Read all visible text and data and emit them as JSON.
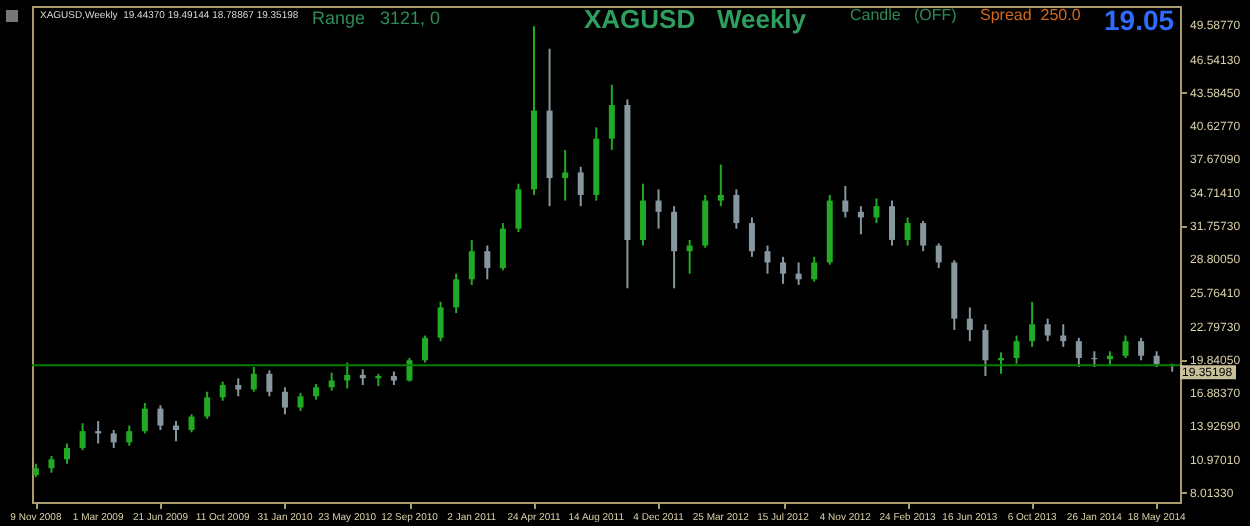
{
  "chart_data": {
    "type": "candlestick",
    "title": "XAGUSD   Weekly",
    "annotations": [
      "XAGUSD,Weekly  19.44370 19.49144 18.78867 19.35198",
      "Range   3121, 0",
      "Candle   (OFF)",
      "Spread  250.0",
      "19.05"
    ],
    "x": [
      "2008-11-09",
      "2008-12-07",
      "2009-01-04",
      "2009-02-01",
      "2009-03-01",
      "2009-03-29",
      "2009-04-26",
      "2009-05-24",
      "2009-06-21",
      "2009-07-19",
      "2009-08-16",
      "2009-09-13",
      "2009-10-11",
      "2009-11-08",
      "2009-12-06",
      "2010-01-03",
      "2010-01-31",
      "2010-02-28",
      "2010-03-28",
      "2010-04-25",
      "2010-05-23",
      "2010-06-20",
      "2010-07-18",
      "2010-08-15",
      "2010-09-12",
      "2010-10-10",
      "2010-11-07",
      "2010-12-05",
      "2011-01-02",
      "2011-01-30",
      "2011-02-27",
      "2011-03-27",
      "2011-04-24",
      "2011-05-22",
      "2011-06-19",
      "2011-07-17",
      "2011-08-14",
      "2011-09-11",
      "2011-10-09",
      "2011-11-06",
      "2011-12-04",
      "2012-01-01",
      "2012-01-29",
      "2012-02-26",
      "2012-03-25",
      "2012-04-22",
      "2012-05-20",
      "2012-06-17",
      "2012-07-15",
      "2012-08-12",
      "2012-09-09",
      "2012-10-07",
      "2012-11-04",
      "2012-12-02",
      "2012-12-30",
      "2013-01-27",
      "2013-02-24",
      "2013-03-24",
      "2013-04-21",
      "2013-05-19",
      "2013-06-16",
      "2013-07-14",
      "2013-08-11",
      "2013-09-08",
      "2013-10-06",
      "2013-11-03",
      "2013-12-01",
      "2013-12-29",
      "2014-01-26",
      "2014-02-23",
      "2014-03-23",
      "2014-04-20",
      "2014-05-18",
      "2014-06-15"
    ],
    "ohlc": [
      [
        9.6,
        10.6,
        9.4,
        10.2
      ],
      [
        10.2,
        11.3,
        9.8,
        11.0
      ],
      [
        11.0,
        12.4,
        10.6,
        12.0
      ],
      [
        12.0,
        14.2,
        11.8,
        13.5
      ],
      [
        13.5,
        14.4,
        12.4,
        13.3
      ],
      [
        13.3,
        13.6,
        12.0,
        12.5
      ],
      [
        12.5,
        14.0,
        12.2,
        13.5
      ],
      [
        13.5,
        16.0,
        13.3,
        15.5
      ],
      [
        15.5,
        15.8,
        13.6,
        14.0
      ],
      [
        14.0,
        14.4,
        12.6,
        13.6
      ],
      [
        13.6,
        15.0,
        13.4,
        14.8
      ],
      [
        14.8,
        17.0,
        14.6,
        16.5
      ],
      [
        16.5,
        17.9,
        16.2,
        17.6
      ],
      [
        17.6,
        18.2,
        16.6,
        17.2
      ],
      [
        17.2,
        19.2,
        17.0,
        18.6
      ],
      [
        18.6,
        18.9,
        16.6,
        17.0
      ],
      [
        17.0,
        17.4,
        15.0,
        15.6
      ],
      [
        15.6,
        16.9,
        15.3,
        16.6
      ],
      [
        16.6,
        17.7,
        16.3,
        17.4
      ],
      [
        17.4,
        18.7,
        17.1,
        18.0
      ],
      [
        18.0,
        19.6,
        17.3,
        18.5
      ],
      [
        18.5,
        19.0,
        17.6,
        18.2
      ],
      [
        18.2,
        18.6,
        17.5,
        18.4
      ],
      [
        18.4,
        18.8,
        17.6,
        18.0
      ],
      [
        18.0,
        20.0,
        17.9,
        19.8
      ],
      [
        19.8,
        22.0,
        19.6,
        21.8
      ],
      [
        21.8,
        25.0,
        21.5,
        24.5
      ],
      [
        24.5,
        27.5,
        24.0,
        27.0
      ],
      [
        27.0,
        30.5,
        26.5,
        29.5
      ],
      [
        29.5,
        30.0,
        27.0,
        28.0
      ],
      [
        28.0,
        32.0,
        27.8,
        31.5
      ],
      [
        31.5,
        35.5,
        31.2,
        35.0
      ],
      [
        35.0,
        49.5,
        34.5,
        42.0
      ],
      [
        42.0,
        47.5,
        33.5,
        36.0
      ],
      [
        36.0,
        38.5,
        34.0,
        36.5
      ],
      [
        36.5,
        37.0,
        33.5,
        34.5
      ],
      [
        34.5,
        40.5,
        34.0,
        39.5
      ],
      [
        39.5,
        44.3,
        38.5,
        42.5
      ],
      [
        42.5,
        43.0,
        26.2,
        30.5
      ],
      [
        30.5,
        35.5,
        30.0,
        34.0
      ],
      [
        34.0,
        35.0,
        31.5,
        33.0
      ],
      [
        33.0,
        33.5,
        26.2,
        29.5
      ],
      [
        29.5,
        30.5,
        27.5,
        30.0
      ],
      [
        30.0,
        34.5,
        29.8,
        34.0
      ],
      [
        34.0,
        37.2,
        33.5,
        34.5
      ],
      [
        34.5,
        35.0,
        31.5,
        32.0
      ],
      [
        32.0,
        32.5,
        29.0,
        29.5
      ],
      [
        29.5,
        30.0,
        27.5,
        28.5
      ],
      [
        28.5,
        29.0,
        26.6,
        27.5
      ],
      [
        27.5,
        28.5,
        26.5,
        27.0
      ],
      [
        27.0,
        29.0,
        26.8,
        28.5
      ],
      [
        28.5,
        34.5,
        28.3,
        34.0
      ],
      [
        34.0,
        35.3,
        32.5,
        33.0
      ],
      [
        33.0,
        33.5,
        31.0,
        32.5
      ],
      [
        32.5,
        34.2,
        32.0,
        33.5
      ],
      [
        33.5,
        34.0,
        30.0,
        30.5
      ],
      [
        30.5,
        32.5,
        30.0,
        32.0
      ],
      [
        32.0,
        32.2,
        29.5,
        30.0
      ],
      [
        30.0,
        30.2,
        28.0,
        28.5
      ],
      [
        28.5,
        28.7,
        22.5,
        23.5
      ],
      [
        23.5,
        24.5,
        21.5,
        22.5
      ],
      [
        22.5,
        23.0,
        18.4,
        19.8
      ],
      [
        19.8,
        20.5,
        18.6,
        20.0
      ],
      [
        20.0,
        22.0,
        19.5,
        21.5
      ],
      [
        21.5,
        25.0,
        21.0,
        23.0
      ],
      [
        23.0,
        23.5,
        21.5,
        22.0
      ],
      [
        22.0,
        23.0,
        21.0,
        21.5
      ],
      [
        21.5,
        21.8,
        19.2,
        20.0
      ],
      [
        20.0,
        20.6,
        19.2,
        19.9
      ],
      [
        19.9,
        20.6,
        19.3,
        20.2
      ],
      [
        20.2,
        22.0,
        20.0,
        21.5
      ],
      [
        21.5,
        21.8,
        19.8,
        20.2
      ],
      [
        20.2,
        20.6,
        19.2,
        19.44
      ],
      [
        19.4437,
        19.49144,
        18.78867,
        19.35198
      ]
    ],
    "colors": [
      "#22aa22",
      "#22aa22",
      "#22aa22",
      "#22aa22",
      "#8797a0",
      "#8797a0",
      "#22aa22",
      "#22aa22",
      "#8797a0",
      "#8797a0",
      "#22aa22",
      "#22aa22",
      "#22aa22",
      "#8797a0",
      "#22aa22",
      "#8797a0",
      "#8797a0",
      "#22aa22",
      "#22aa22",
      "#22aa22",
      "#22aa22",
      "#8797a0",
      "#22aa22",
      "#8797a0",
      "#22aa22",
      "#22aa22",
      "#22aa22",
      "#22aa22",
      "#22aa22",
      "#8797a0",
      "#22aa22",
      "#22aa22",
      "#22aa22",
      "#8797a0",
      "#22aa22",
      "#8797a0",
      "#22aa22",
      "#22aa22",
      "#8797a0",
      "#22aa22",
      "#8797a0",
      "#8797a0",
      "#22aa22",
      "#22aa22",
      "#22aa22",
      "#8797a0",
      "#8797a0",
      "#8797a0",
      "#8797a0",
      "#8797a0",
      "#22aa22",
      "#22aa22",
      "#8797a0",
      "#8797a0",
      "#22aa22",
      "#8797a0",
      "#22aa22",
      "#8797a0",
      "#8797a0",
      "#8797a0",
      "#8797a0",
      "#8797a0",
      "#22aa22",
      "#22aa22",
      "#22aa22",
      "#8797a0",
      "#8797a0",
      "#8797a0",
      "#8797a0",
      "#22aa22",
      "#22aa22",
      "#8797a0",
      "#8797a0",
      "#8797a0"
    ],
    "xlim": [
      "2008-11-02",
      "2014-06-29"
    ],
    "xticks": [
      {
        "value": "2008-11-09",
        "label": "9 Nov 2008"
      },
      {
        "value": "2009-03-01",
        "label": "1 Mar 2009"
      },
      {
        "value": "2009-06-21",
        "label": "21 Jun 2009"
      },
      {
        "value": "2009-10-11",
        "label": "11 Oct 2009"
      },
      {
        "value": "2010-01-31",
        "label": "31 Jan 2010"
      },
      {
        "value": "2010-05-23",
        "label": "23 May 2010"
      },
      {
        "value": "2010-09-12",
        "label": "12 Sep 2010"
      },
      {
        "value": "2011-01-02",
        "label": "2 Jan 2011"
      },
      {
        "value": "2011-04-24",
        "label": "24 Apr 2011"
      },
      {
        "value": "2011-08-14",
        "label": "14 Aug 2011"
      },
      {
        "value": "2011-12-04",
        "label": "4 Dec 2011"
      },
      {
        "value": "2012-03-25",
        "label": "25 Mar 2012"
      },
      {
        "value": "2012-07-15",
        "label": "15 Jul 2012"
      },
      {
        "value": "2012-11-04",
        "label": "4 Nov 2012"
      },
      {
        "value": "2013-02-24",
        "label": "24 Feb 2013"
      },
      {
        "value": "2013-06-16",
        "label": "16 Jun 2013"
      },
      {
        "value": "2013-10-06",
        "label": "6 Oct 2013"
      },
      {
        "value": "2014-01-26",
        "label": "26 Jan 2014"
      },
      {
        "value": "2014-05-18",
        "label": "18 May 2014"
      }
    ],
    "ylim": [
      7.2,
      51.3
    ],
    "yticks": [
      {
        "value": 8.0133,
        "label": "8.01330"
      },
      {
        "value": 10.9701,
        "label": "10.97010"
      },
      {
        "value": 13.9269,
        "label": "13.92690"
      },
      {
        "value": 16.8837,
        "label": "16.88370"
      },
      {
        "value": 19.8405,
        "label": "19.84050"
      },
      {
        "value": 22.7973,
        "label": "22.79730"
      },
      {
        "value": 25.7641,
        "label": "25.76410"
      },
      {
        "value": 28.8005,
        "label": "28.80050"
      },
      {
        "value": 31.7573,
        "label": "31.75730"
      },
      {
        "value": 34.7141,
        "label": "34.71410"
      },
      {
        "value": 37.6709,
        "label": "37.67090"
      },
      {
        "value": 40.6277,
        "label": "40.62770"
      },
      {
        "value": 43.5845,
        "label": "43.58450"
      },
      {
        "value": 46.5413,
        "label": "46.54130"
      },
      {
        "value": 49.5877,
        "label": "49.58770"
      }
    ],
    "ref_lines": [
      {
        "axis": "y",
        "value": 19.35198,
        "label": "19.35198",
        "color": "#008000"
      }
    ],
    "grid": false
  }
}
